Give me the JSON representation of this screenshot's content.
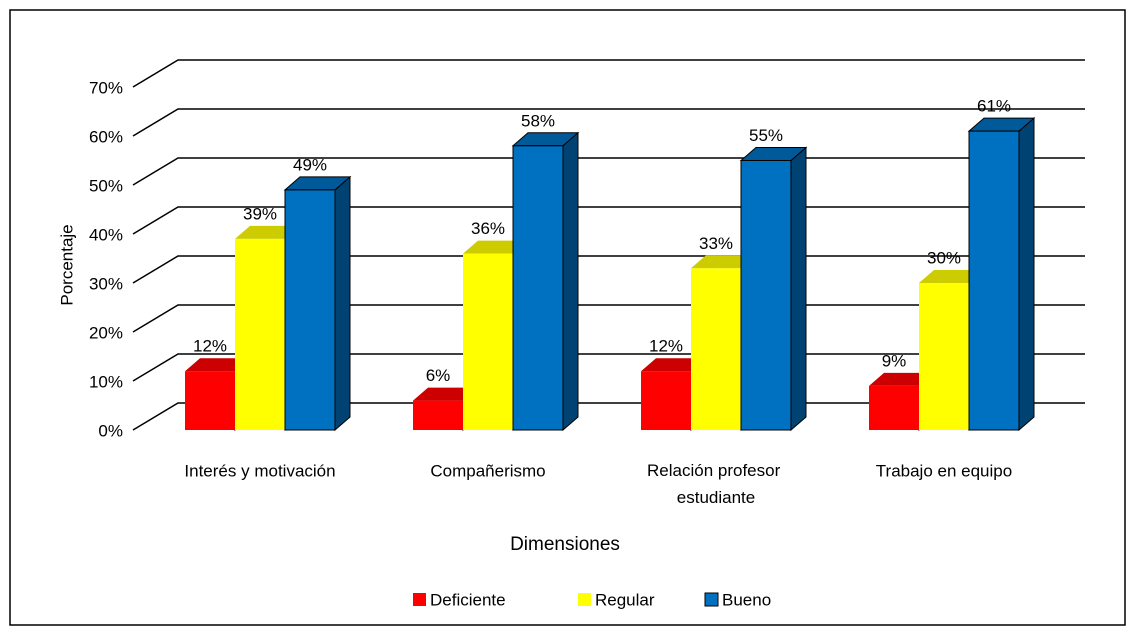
{
  "chart_data": {
    "type": "bar3d",
    "categories": [
      "Interés y motivación",
      "Compañerismo",
      "Relación profesor estudiante",
      "Trabajo en equipo"
    ],
    "series": [
      {
        "name": "Deficiente",
        "color": "#ff0000",
        "values": [
          12,
          6,
          12,
          9
        ],
        "value_labels": [
          "12%",
          "6%",
          "12%",
          "9%"
        ]
      },
      {
        "name": "Regular",
        "color": "#ffff00",
        "values": [
          39,
          36,
          33,
          30
        ],
        "value_labels": [
          "39%",
          "36%",
          "33%",
          "30%"
        ]
      },
      {
        "name": "Bueno",
        "color": "#0070c0",
        "values": [
          49,
          58,
          55,
          61
        ],
        "value_labels": [
          "49%",
          "58%",
          "55%",
          "61%"
        ]
      }
    ],
    "ylabel": "Porcentaje",
    "xlabel": "Dimensiones",
    "ylim": [
      0,
      70
    ],
    "yticks": [
      {
        "value": 0,
        "label": "0%"
      },
      {
        "value": 10,
        "label": "10%"
      },
      {
        "value": 20,
        "label": "20%"
      },
      {
        "value": 30,
        "label": "30%"
      },
      {
        "value": 40,
        "label": "40%"
      },
      {
        "value": 50,
        "label": "50%"
      },
      {
        "value": 60,
        "label": "60%"
      },
      {
        "value": 70,
        "label": "70%"
      }
    ],
    "grid": true,
    "legend": "bottom"
  }
}
